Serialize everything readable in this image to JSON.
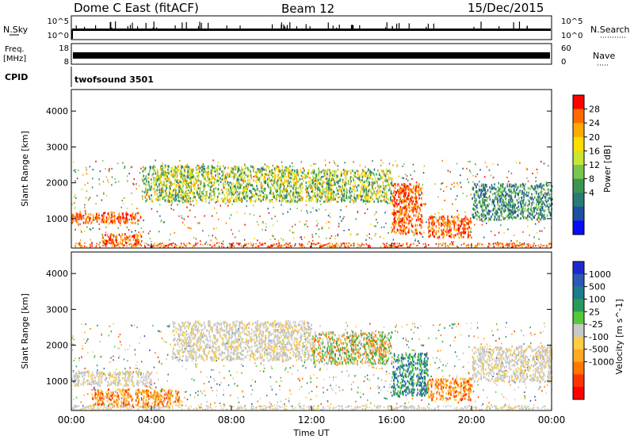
{
  "header": {
    "station": "Dome C East (fitACF)",
    "beam": "Beam 12",
    "date": "15/Dec/2015"
  },
  "top_panels": {
    "nsky_label": "N.Sky",
    "nsky_ticks": [
      "10^5",
      "10^0"
    ],
    "nsearch_label": "N.Search",
    "nsearch_ticks": [
      "10^5",
      "10^0"
    ],
    "freq_label": "Freq.",
    "freq_unit": "[MHz]",
    "freq_ticks": [
      "18",
      "8"
    ],
    "nave_label": "Nave",
    "nave_ticks": [
      "60",
      "0"
    ],
    "cpid_label": "CPID",
    "cpid_value": "twofsound 3501"
  },
  "x_axis": {
    "label": "Time UT",
    "ticks": [
      "00:00",
      "04:00",
      "08:00",
      "12:00",
      "16:00",
      "20:00",
      "00:00"
    ]
  },
  "power_colorbar": {
    "label": "Power [dB]",
    "ticks": [
      "28",
      "24",
      "20",
      "16",
      "12",
      "8",
      "4"
    ],
    "colors": [
      "#ff0000",
      "#ff6a00",
      "#ffaa00",
      "#ffdd00",
      "#c8e632",
      "#78c850",
      "#3c9650",
      "#287a78",
      "#1e50a0",
      "#0a0aff"
    ]
  },
  "velocity_colorbar": {
    "label": "Velocity [m s^-1]",
    "ticks": [
      "1000",
      "500",
      "100",
      "25",
      "-25",
      "-100",
      "-500",
      "-1000"
    ],
    "colors": [
      "#1e28d2",
      "#2a5ab4",
      "#1e7a8c",
      "#2a9a5a",
      "#55c83c",
      "#c8c8c8",
      "#ffcc44",
      "#ffaa22",
      "#ff7700",
      "#ff3300",
      "#ff0000"
    ]
  },
  "chart_data": [
    {
      "type": "heatmap",
      "title": "Power",
      "ylabel": "Slant Range [km]",
      "xlabel": "Time UT",
      "xlim_hours": [
        0,
        24
      ],
      "ylim": [
        180,
        4600
      ],
      "yticks": [
        1000,
        2000,
        3000,
        4000
      ],
      "colorbar_label": "Power [dB]",
      "regions": [
        {
          "t0": 0.0,
          "t1": 3.5,
          "r0": 900,
          "r1": 1200,
          "level": "high"
        },
        {
          "t0": 1.5,
          "t1": 3.5,
          "r0": 300,
          "r1": 600,
          "level": "high"
        },
        {
          "t0": 3.5,
          "t1": 11.0,
          "r0": 1500,
          "r1": 2500,
          "level": "mid"
        },
        {
          "t0": 11.0,
          "t1": 16.0,
          "r0": 1500,
          "r1": 2400,
          "level": "mid"
        },
        {
          "t0": 16.0,
          "t1": 17.5,
          "r0": 600,
          "r1": 2000,
          "level": "high"
        },
        {
          "t0": 17.8,
          "t1": 20.0,
          "r0": 500,
          "r1": 1100,
          "level": "high"
        },
        {
          "t0": 20.0,
          "t1": 24.0,
          "r0": 1000,
          "r1": 2000,
          "level": "low"
        }
      ]
    },
    {
      "type": "heatmap",
      "title": "Velocity",
      "ylabel": "Slant Range [km]",
      "xlabel": "Time UT",
      "xlim_hours": [
        0,
        24
      ],
      "ylim": [
        180,
        4600
      ],
      "yticks": [
        1000,
        2000,
        3000,
        4000
      ],
      "colorbar_label": "Velocity [m s^-1]",
      "regions": [
        {
          "t0": 0.0,
          "t1": 4.0,
          "r0": 900,
          "r1": 1300,
          "level": "ground"
        },
        {
          "t0": 1.0,
          "t1": 5.5,
          "r0": 300,
          "r1": 800,
          "level": "away"
        },
        {
          "t0": 5.0,
          "t1": 12.0,
          "r0": 1600,
          "r1": 2700,
          "level": "ground"
        },
        {
          "t0": 12.0,
          "t1": 16.0,
          "r0": 1500,
          "r1": 2400,
          "level": "mixed"
        },
        {
          "t0": 16.0,
          "t1": 17.8,
          "r0": 600,
          "r1": 1800,
          "level": "toward"
        },
        {
          "t0": 17.8,
          "t1": 20.0,
          "r0": 500,
          "r1": 1100,
          "level": "away"
        },
        {
          "t0": 20.0,
          "t1": 24.0,
          "r0": 1000,
          "r1": 2000,
          "level": "ground"
        }
      ]
    }
  ]
}
